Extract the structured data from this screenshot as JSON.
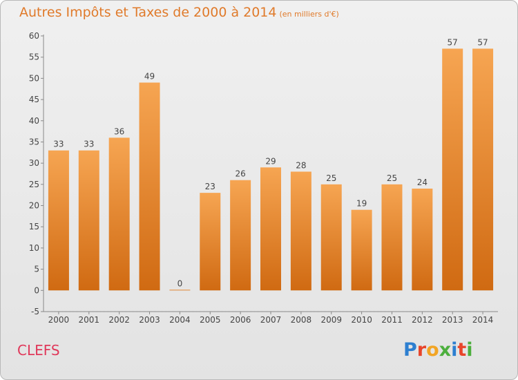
{
  "title": "Autres Impôts et Taxes de 2000 à 2014",
  "subtitle": "(en milliers d'€)",
  "town": "CLEFS",
  "logo": {
    "letters": [
      "P",
      "r",
      "o",
      "x",
      "i",
      "t",
      "i"
    ],
    "colors": [
      "#2d7fd0",
      "#e8452b",
      "#f2a524",
      "#4caf3d",
      "#2d7fd0",
      "#e8452b",
      "#4caf3d"
    ]
  },
  "colors": {
    "bar_top": "#f6a552",
    "bar_bottom": "#d06a12",
    "accent": "#e07a2a",
    "town": "#e0385a"
  },
  "chart_data": {
    "type": "bar",
    "categories": [
      "2000",
      "2001",
      "2002",
      "2003",
      "2004",
      "2005",
      "2006",
      "2007",
      "2008",
      "2009",
      "2010",
      "2011",
      "2012",
      "2013",
      "2014"
    ],
    "values": [
      33,
      33,
      36,
      49,
      0,
      23,
      26,
      29,
      28,
      25,
      19,
      25,
      24,
      57,
      57
    ],
    "title": "Autres Impôts et Taxes de 2000 à 2014",
    "subtitle": "(en milliers d'€)",
    "ylim": [
      -5,
      60
    ],
    "yticks": [
      -5,
      0,
      5,
      10,
      15,
      20,
      25,
      30,
      35,
      40,
      45,
      50,
      55,
      60
    ],
    "grid": false,
    "legend": "none"
  }
}
